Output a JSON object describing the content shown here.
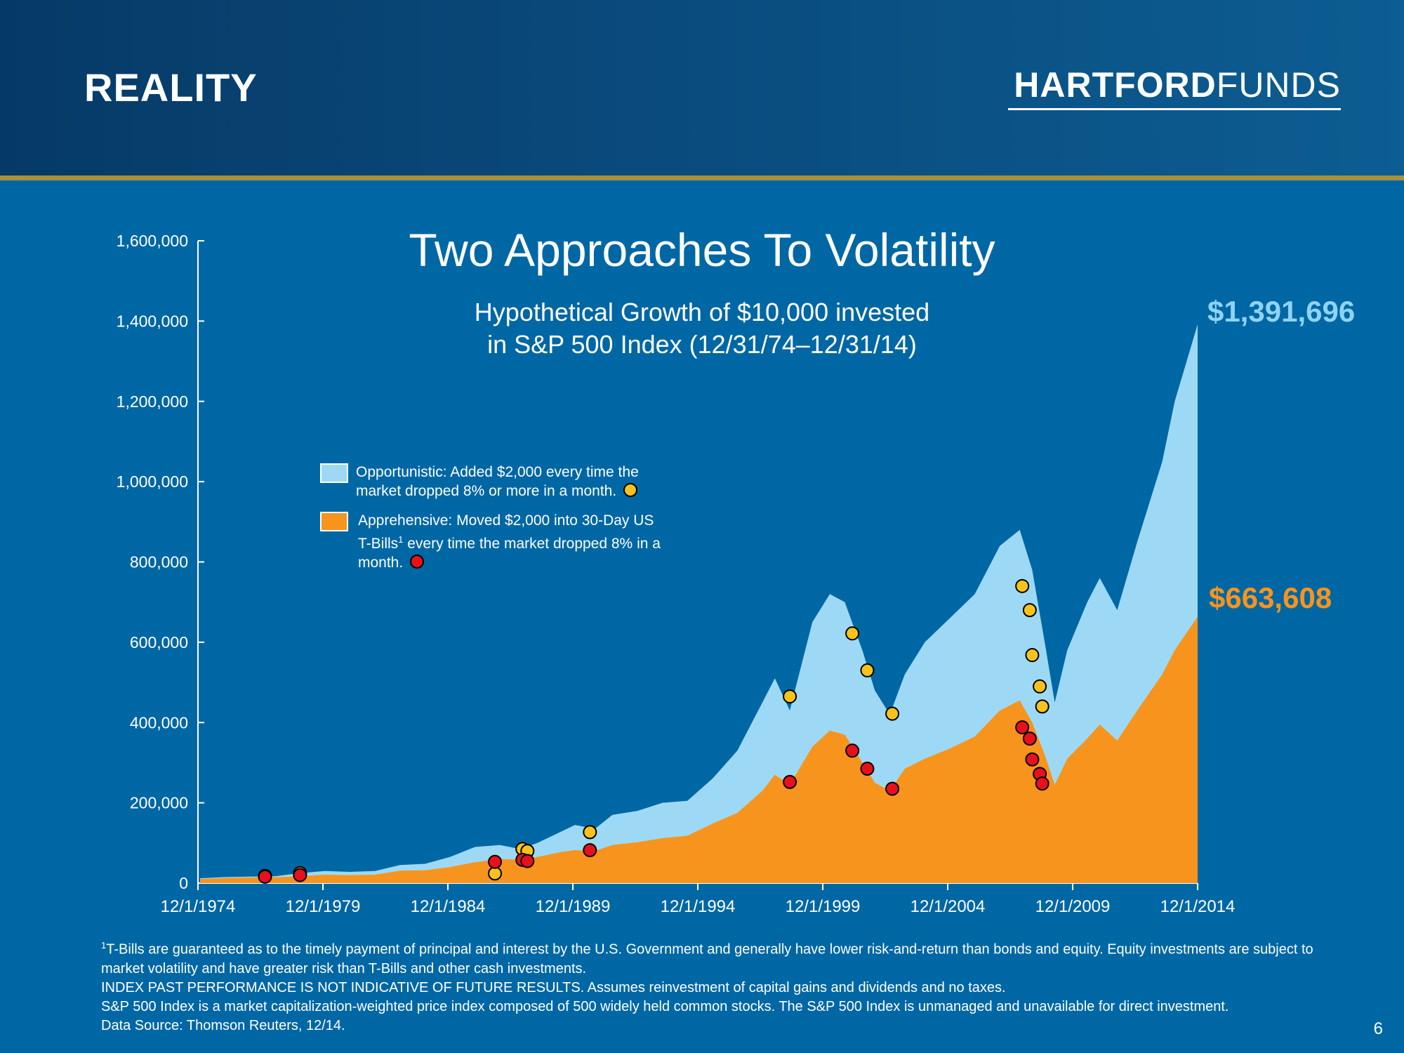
{
  "header": {
    "title": "REALITY",
    "logo_bold": "HARTFORD",
    "logo_light": "FUNDS"
  },
  "colors": {
    "header_dark": "#063a66",
    "background": "#0067a5",
    "gold_rule": "#a8913a",
    "opportunistic": "#9dd9f5",
    "apprehensive": "#f7941d",
    "opportunistic_label": "#8fd3f4",
    "apprehensive_label": "#f7941d",
    "marker_opportunistic": "#f7c21c",
    "marker_apprehensive": "#e8101a"
  },
  "legend": {
    "opportunistic": "Opportunistic: Added $2,000 every time the market dropped 8% or more in a month.",
    "apprehensive_pre": "Apprehensive: Moved $2,000 into 30-Day US T-Bills",
    "apprehensive_sup": "1",
    "apprehensive_post": " every time the market dropped 8% in a month."
  },
  "chart_data": {
    "type": "area",
    "title": "Two Approaches To Volatility",
    "subtitle_line1": "Hypothetical Growth of $10,000 invested",
    "subtitle_line2": "in S&P 500 Index (12/31/74–12/31/14)",
    "xlabel": "",
    "ylabel": "",
    "ylim": [
      0,
      1600000
    ],
    "xlim": [
      1974.917,
      2014.917
    ],
    "y_ticks": [
      0,
      200000,
      400000,
      600000,
      800000,
      1000000,
      1200000,
      1400000,
      1600000
    ],
    "y_tick_labels": [
      "0",
      "200,000",
      "400,000",
      "600,000",
      "800,000",
      "1,000,000",
      "1,200,000",
      "1,400,000",
      "1,600,000"
    ],
    "x_ticks": [
      1974.917,
      1979.917,
      1984.917,
      1989.917,
      1994.917,
      1999.917,
      2004.917,
      2009.917,
      2014.917
    ],
    "x_tick_labels": [
      "12/1/1974",
      "12/1/1979",
      "12/1/1984",
      "12/1/1989",
      "12/1/1994",
      "12/1/1999",
      "12/1/2004",
      "12/1/2009",
      "12/1/2014"
    ],
    "grid": false,
    "legend_position": "upper-left",
    "series": [
      {
        "name": "Opportunistic",
        "x": [
          1975.0,
          1976.0,
          1977.0,
          1978.0,
          1979.0,
          1980.0,
          1981.0,
          1982.0,
          1983.0,
          1984.0,
          1985.0,
          1986.0,
          1987.0,
          1987.8,
          1988.5,
          1989.5,
          1990.0,
          1990.8,
          1991.5,
          1992.5,
          1993.5,
          1994.5,
          1995.5,
          1996.5,
          1997.5,
          1998.0,
          1998.6,
          1999.5,
          2000.2,
          2000.8,
          2001.5,
          2002.0,
          2002.6,
          2003.2,
          2004.0,
          2005.0,
          2006.0,
          2007.0,
          2007.8,
          2008.3,
          2008.8,
          2009.2,
          2009.7,
          2010.5,
          2011.0,
          2011.7,
          2012.5,
          2013.5,
          2014.0,
          2014.917
        ],
        "values": [
          12000,
          15000,
          16000,
          17000,
          25000,
          30000,
          28000,
          30000,
          45000,
          48000,
          65000,
          90000,
          95000,
          85000,
          100000,
          130000,
          145000,
          135000,
          170000,
          180000,
          200000,
          205000,
          260000,
          330000,
          450000,
          510000,
          430000,
          650000,
          720000,
          700000,
          580000,
          480000,
          420000,
          520000,
          600000,
          660000,
          720000,
          840000,
          880000,
          780000,
          600000,
          450000,
          580000,
          700000,
          760000,
          680000,
          850000,
          1050000,
          1200000,
          1391696
        ]
      },
      {
        "name": "Apprehensive",
        "x": [
          1975.0,
          1976.0,
          1977.0,
          1978.0,
          1979.0,
          1980.0,
          1981.0,
          1982.0,
          1983.0,
          1984.0,
          1985.0,
          1986.0,
          1987.0,
          1987.8,
          1988.5,
          1989.5,
          1990.0,
          1990.8,
          1991.5,
          1992.5,
          1993.5,
          1994.5,
          1995.5,
          1996.5,
          1997.5,
          1998.0,
          1998.6,
          1999.5,
          2000.2,
          2000.8,
          2001.5,
          2002.0,
          2002.6,
          2003.2,
          2004.0,
          2005.0,
          2006.0,
          2007.0,
          2007.8,
          2008.3,
          2008.8,
          2009.2,
          2009.7,
          2010.5,
          2011.0,
          2011.7,
          2012.5,
          2013.5,
          2014.0,
          2014.917
        ],
        "values": [
          10000,
          13000,
          14000,
          14500,
          17000,
          21000,
          20000,
          21000,
          31000,
          32000,
          40000,
          52000,
          60000,
          58000,
          65000,
          78000,
          82000,
          80000,
          95000,
          102000,
          112000,
          118000,
          148000,
          175000,
          230000,
          270000,
          245000,
          340000,
          380000,
          370000,
          300000,
          250000,
          230000,
          285000,
          310000,
          335000,
          365000,
          430000,
          455000,
          400000,
          320000,
          245000,
          310000,
          360000,
          395000,
          355000,
          430000,
          520000,
          580000,
          663608
        ]
      }
    ],
    "markers_opportunistic": [
      {
        "x": 1977.6,
        "y": 18000
      },
      {
        "x": 1979.0,
        "y": 25000
      },
      {
        "x": 1986.8,
        "y": 24000
      },
      {
        "x": 1987.9,
        "y": 85000
      },
      {
        "x": 1988.1,
        "y": 80000
      },
      {
        "x": 1990.6,
        "y": 127000
      },
      {
        "x": 1998.6,
        "y": 465000
      },
      {
        "x": 2001.1,
        "y": 622000
      },
      {
        "x": 2001.7,
        "y": 530000
      },
      {
        "x": 2002.7,
        "y": 422000
      },
      {
        "x": 2007.9,
        "y": 740000
      },
      {
        "x": 2008.2,
        "y": 680000
      },
      {
        "x": 2008.3,
        "y": 568000
      },
      {
        "x": 2008.6,
        "y": 490000
      },
      {
        "x": 2008.7,
        "y": 440000
      }
    ],
    "markers_apprehensive": [
      {
        "x": 1977.6,
        "y": 16000
      },
      {
        "x": 1979.0,
        "y": 20000
      },
      {
        "x": 1986.8,
        "y": 53000
      },
      {
        "x": 1987.9,
        "y": 58000
      },
      {
        "x": 1988.1,
        "y": 55000
      },
      {
        "x": 1990.6,
        "y": 82000
      },
      {
        "x": 1998.6,
        "y": 252000
      },
      {
        "x": 2001.1,
        "y": 330000
      },
      {
        "x": 2001.7,
        "y": 285000
      },
      {
        "x": 2002.7,
        "y": 235000
      },
      {
        "x": 2007.9,
        "y": 388000
      },
      {
        "x": 2008.2,
        "y": 360000
      },
      {
        "x": 2008.3,
        "y": 308000
      },
      {
        "x": 2008.6,
        "y": 272000
      },
      {
        "x": 2008.7,
        "y": 248000
      }
    ],
    "end_labels": {
      "opportunistic": "$1,391,696",
      "apprehensive": "$663,608"
    }
  },
  "footnote": {
    "sup": "1",
    "line1": "T-Bills are guaranteed as to the timely payment of principal and interest by the U.S. Government and generally have lower risk-and-return than bonds and equity. Equity investments are subject to market volatility and have greater risk than T-Bills and other cash investments.",
    "line2": "INDEX PAST PERFORMANCE IS NOT INDICATIVE OF FUTURE RESULTS. Assumes reinvestment of capital gains and dividends and no taxes.",
    "line3": "S&P 500 Index is a market capitalization-weighted price index composed of 500 widely held common stocks. The S&P 500 Index is unmanaged and unavailable for direct investment.",
    "line4": "Data Source: Thomson Reuters, 12/14."
  },
  "page_number": "6"
}
